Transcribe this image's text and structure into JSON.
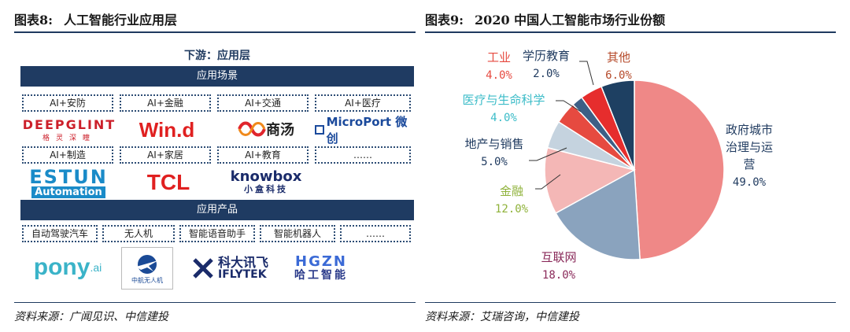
{
  "left_panel": {
    "title_num": "图表8:",
    "title_text": "人工智能行业应用层",
    "heading": "下游：应用层",
    "scene_bar": "应用场景",
    "scene_tags": [
      "AI+安防",
      "AI+金融",
      "AI+交通",
      "AI+医疗",
      "AI+制造",
      "AI+家居",
      "AI+教育",
      "……"
    ],
    "product_bar": "应用产品",
    "product_tags": [
      "自动驾驶汽车",
      "无人机",
      "智能语音助手",
      "智能机器人",
      "……"
    ],
    "logos": {
      "deepglint": "DEEPGLINT",
      "deepglint_sub": "格灵深瞳",
      "wind": "Win.d",
      "sensetime": "商汤",
      "microport": "MicroPort 微创",
      "estun": "ESTUN",
      "estun_sub": "Automation",
      "tcl": "TCL",
      "knowbox": "knowbox",
      "knowbox_sub": "小盒科技",
      "pony": "pony",
      "pony_sub": ".ai",
      "avic": "中航无人机",
      "iflytek": "科大讯飞",
      "iflytek_sub": "IFLYTEK",
      "hgzn": "HGZN",
      "hgzn_sub": "哈工智能"
    },
    "source": "资料来源：广闻见识、中信建投"
  },
  "right_panel": {
    "title_num": "图表9:",
    "title_text": "2020 中国人工智能市场行业份额",
    "source": "资料来源：艾瑞咨询，中信建投"
  },
  "chart_data": {
    "type": "pie",
    "title": "2020 中国人工智能市场行业份额",
    "slices": [
      {
        "name": "政府城市治理与运营",
        "label_lines": [
          "政府城市",
          "治理与运",
          "营"
        ],
        "value": 49.0,
        "value_label": "49.0%",
        "color": "#ef8887"
      },
      {
        "name": "互联网",
        "label_lines": [
          "互联网"
        ],
        "value": 18.0,
        "value_label": "18.0%",
        "color": "#8aa3be"
      },
      {
        "name": "金融",
        "label_lines": [
          "金融"
        ],
        "value": 12.0,
        "value_label": "12.0%",
        "color": "#f4b7b6"
      },
      {
        "name": "地产与销售",
        "label_lines": [
          "地产与销售"
        ],
        "value": 5.0,
        "value_label": "5.0%",
        "color": "#c5d3df"
      },
      {
        "name": "医疗与生命科学",
        "label_lines": [
          "医疗与生命科学"
        ],
        "value": 4.0,
        "value_label": "4.0%",
        "color": "#e64a40"
      },
      {
        "name": "学历教育",
        "label_lines": [
          "学历教育"
        ],
        "value": 2.0,
        "value_label": "2.0%",
        "color": "#3d5f86"
      },
      {
        "name": "工业",
        "label_lines": [
          "工业"
        ],
        "value": 4.0,
        "value_label": "4.0%",
        "color": "#e62d2d"
      },
      {
        "name": "其他",
        "label_lines": [
          "其他"
        ],
        "value": 6.0,
        "value_label": "6.0%",
        "color": "#1e4062"
      }
    ],
    "label_colors": {
      "政府城市治理与运营": "#1f3a5f",
      "互联网": "#8a2a5a",
      "金融": "#8fb23a",
      "地产与销售": "#1f3a5f",
      "医疗与生命科学": "#3bbcc8",
      "学历教育": "#1f3a5f",
      "工业": "#e64a40",
      "其他": "#b54a2a"
    }
  }
}
